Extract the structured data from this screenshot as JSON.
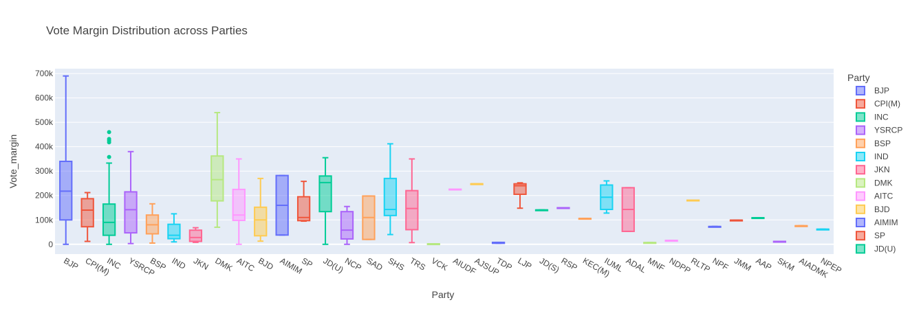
{
  "chart_data": {
    "type": "box",
    "title": "Vote Margin Distribution across Parties",
    "xlabel": "Party",
    "ylabel": "Vote_margin",
    "ylim": [
      -40000,
      720000
    ],
    "yticks": [
      0,
      100000,
      200000,
      300000,
      400000,
      500000,
      600000,
      700000
    ],
    "ytick_labels": [
      "0",
      "100k",
      "200k",
      "300k",
      "400k",
      "500k",
      "600k",
      "700k"
    ],
    "legend_title": "Party",
    "legend_position": "right",
    "palette": [
      "#636efa",
      "#EF553B",
      "#00cc96",
      "#ab63fa",
      "#FFA15A",
      "#19d3f3",
      "#FF6692",
      "#B6E880",
      "#FF97FF",
      "#FECB52"
    ],
    "background": "#e5ecf6",
    "grid": true,
    "series": [
      {
        "name": "BJP",
        "min": 0,
        "q1": 100000,
        "median": 218000,
        "q3": 340000,
        "max": 690000,
        "outliers": []
      },
      {
        "name": "CPI(M)",
        "min": 12000,
        "q1": 72000,
        "median": 140000,
        "q3": 187000,
        "max": 212000,
        "outliers": []
      },
      {
        "name": "INC",
        "min": 0,
        "q1": 37000,
        "median": 90000,
        "q3": 165000,
        "max": 333000,
        "outliers": [
          358000,
          418000,
          425000,
          432000,
          460000
        ]
      },
      {
        "name": "YSRCP",
        "min": 3000,
        "q1": 47000,
        "median": 142000,
        "q3": 215000,
        "max": 380000,
        "outliers": []
      },
      {
        "name": "BSP",
        "min": 5000,
        "q1": 43000,
        "median": 80000,
        "q3": 120000,
        "max": 166000,
        "outliers": []
      },
      {
        "name": "IND",
        "min": 10000,
        "q1": 23000,
        "median": 37000,
        "q3": 82000,
        "max": 125000,
        "outliers": []
      },
      {
        "name": "JKN",
        "min": 8000,
        "q1": 12000,
        "median": 28000,
        "q3": 58000,
        "max": 68000,
        "outliers": []
      },
      {
        "name": "DMK",
        "min": 70000,
        "q1": 178000,
        "median": 265000,
        "q3": 362000,
        "max": 540000,
        "outliers": []
      },
      {
        "name": "AITC",
        "min": 0,
        "q1": 98000,
        "median": 120000,
        "q3": 225000,
        "max": 350000,
        "outliers": []
      },
      {
        "name": "BJD",
        "min": 13000,
        "q1": 35000,
        "median": 100000,
        "q3": 152000,
        "max": 270000,
        "outliers": []
      },
      {
        "name": "AIMIM",
        "min": 38000,
        "q1": 38000,
        "median": 160000,
        "q3": 282000,
        "max": 282000,
        "outliers": []
      },
      {
        "name": "SP",
        "min": 95000,
        "q1": 97000,
        "median": 110000,
        "q3": 195000,
        "max": 258000,
        "outliers": []
      },
      {
        "name": "JD(U)",
        "min": 0,
        "q1": 134000,
        "median": 253000,
        "q3": 280000,
        "max": 355000,
        "outliers": []
      },
      {
        "name": "NCP",
        "min": 0,
        "q1": 22000,
        "median": 58000,
        "q3": 134000,
        "max": 155000,
        "outliers": []
      },
      {
        "name": "SAD",
        "min": 20000,
        "q1": 20000,
        "median": 110000,
        "q3": 198000,
        "max": 198000,
        "outliers": []
      },
      {
        "name": "SHS",
        "min": 40000,
        "q1": 118000,
        "median": 143000,
        "q3": 270000,
        "max": 412000,
        "outliers": []
      },
      {
        "name": "TRS",
        "min": 7000,
        "q1": 60000,
        "median": 147000,
        "q3": 220000,
        "max": 350000,
        "outliers": []
      },
      {
        "name": "VCK",
        "min": 2000,
        "q1": 2000,
        "median": 2000,
        "q3": 2000,
        "max": 2000,
        "outliers": []
      },
      {
        "name": "AIUDF",
        "min": 226000,
        "q1": 226000,
        "median": 226000,
        "q3": 226000,
        "max": 226000,
        "outliers": []
      },
      {
        "name": "AJSUP",
        "min": 248000,
        "q1": 248000,
        "median": 248000,
        "q3": 248000,
        "max": 248000,
        "outliers": []
      },
      {
        "name": "TDP",
        "min": 4000,
        "q1": 4000,
        "median": 7000,
        "q3": 8000,
        "max": 8000,
        "outliers": []
      },
      {
        "name": "LJP",
        "min": 148000,
        "q1": 205000,
        "median": 240000,
        "q3": 248000,
        "max": 252000,
        "outliers": []
      },
      {
        "name": "JD(S)",
        "min": 141000,
        "q1": 141000,
        "median": 141000,
        "q3": 141000,
        "max": 141000,
        "outliers": []
      },
      {
        "name": "RSP",
        "min": 150000,
        "q1": 150000,
        "median": 150000,
        "q3": 150000,
        "max": 150000,
        "outliers": []
      },
      {
        "name": "KEC(M)",
        "min": 106000,
        "q1": 106000,
        "median": 106000,
        "q3": 106000,
        "max": 106000,
        "outliers": []
      },
      {
        "name": "IUML",
        "min": 128000,
        "q1": 143000,
        "median": 193000,
        "q3": 243000,
        "max": 260000,
        "outliers": []
      },
      {
        "name": "ADAL",
        "min": 53000,
        "q1": 53000,
        "median": 143000,
        "q3": 232000,
        "max": 232000,
        "outliers": []
      },
      {
        "name": "MNF",
        "min": 7000,
        "q1": 7000,
        "median": 7000,
        "q3": 7000,
        "max": 7000,
        "outliers": []
      },
      {
        "name": "NDPP",
        "min": 16000,
        "q1": 16000,
        "median": 16000,
        "q3": 16000,
        "max": 16000,
        "outliers": []
      },
      {
        "name": "RLTP",
        "min": 181000,
        "q1": 181000,
        "median": 181000,
        "q3": 181000,
        "max": 181000,
        "outliers": []
      },
      {
        "name": "NPF",
        "min": 73000,
        "q1": 73000,
        "median": 73000,
        "q3": 73000,
        "max": 73000,
        "outliers": []
      },
      {
        "name": "JMM",
        "min": 99000,
        "q1": 99000,
        "median": 99000,
        "q3": 99000,
        "max": 99000,
        "outliers": []
      },
      {
        "name": "AAP",
        "min": 109000,
        "q1": 109000,
        "median": 109000,
        "q3": 109000,
        "max": 109000,
        "outliers": []
      },
      {
        "name": "SKM",
        "min": 12000,
        "q1": 12000,
        "median": 12000,
        "q3": 12000,
        "max": 12000,
        "outliers": []
      },
      {
        "name": "AIADMK",
        "min": 76000,
        "q1": 76000,
        "median": 76000,
        "q3": 76000,
        "max": 76000,
        "outliers": []
      },
      {
        "name": "NPEP",
        "min": 62000,
        "q1": 62000,
        "median": 62000,
        "q3": 62000,
        "max": 62000,
        "outliers": []
      }
    ],
    "legend_visible_count": 13
  }
}
